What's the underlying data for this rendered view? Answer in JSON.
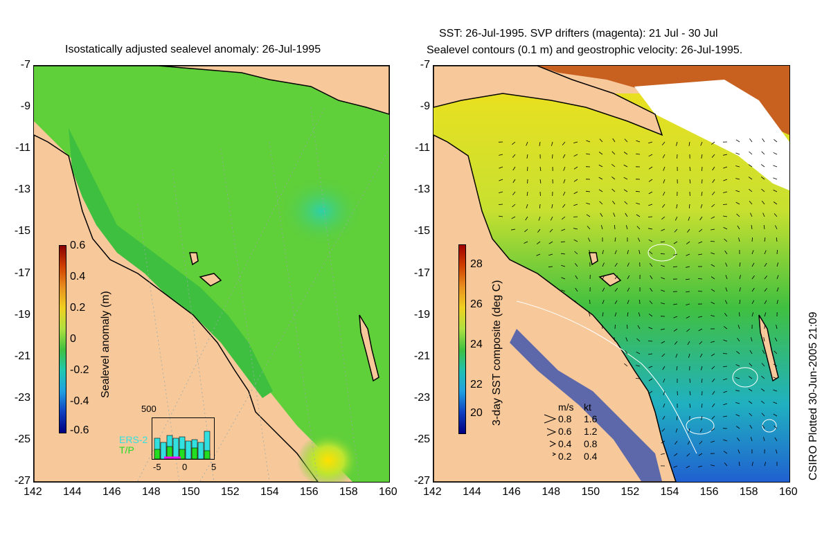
{
  "left_panel": {
    "title": "Isostatically adjusted sealevel anomaly: 26-Jul-1995",
    "colorbar_label": "Sealevel anomaly (m)",
    "colorbar_ticks": [
      "0.6",
      "0.4",
      "0.2",
      "0",
      "-0.2",
      "-0.4",
      "-0.6"
    ],
    "inset": {
      "ymax_label": "500",
      "x_ticks": [
        "-5",
        "0",
        "5"
      ],
      "legend": [
        "ERS-2",
        "T/P"
      ],
      "legend_colors": [
        "#33e0e0",
        "#22dd22"
      ]
    }
  },
  "right_panel": {
    "title_line1": "SST: 26-Jul-1995. SVP drifters (magenta): 21 Jul - 30 Jul",
    "title_line2": "Sealevel contours (0.1 m) and geostrophic velocity: 26-Jul-1995.",
    "colorbar_label": "3-day SST composite (deg C)",
    "colorbar_ticks": [
      "28",
      "26",
      "24",
      "22",
      "20"
    ],
    "speed_legend": {
      "header_ms": "m/s",
      "header_kt": "kt",
      "rows": [
        {
          "ms": "0.8",
          "kt": "1.6"
        },
        {
          "ms": "0.6",
          "kt": "1.2"
        },
        {
          "ms": "0.4",
          "kt": "0.8"
        },
        {
          "ms": "0.2",
          "kt": "0.4"
        }
      ]
    }
  },
  "axes": {
    "lat_ticks": [
      "-7",
      "-9",
      "-11",
      "-13",
      "-15",
      "-17",
      "-19",
      "-21",
      "-23",
      "-25",
      "-27"
    ],
    "lon_ticks": [
      "142",
      "144",
      "146",
      "148",
      "150",
      "152",
      "154",
      "156",
      "158",
      "160"
    ]
  },
  "credit": "CSIRO Plotted 30-Jun-2005 21:09",
  "colors": {
    "land": "#f7c89a",
    "sla_ocean": "#5fcf3a",
    "sla_shelf": "#3fbf3f",
    "sst_warm": "#d8e020",
    "sst_mid": "#2fc04a",
    "sst_cool": "#2a7fe0"
  }
}
